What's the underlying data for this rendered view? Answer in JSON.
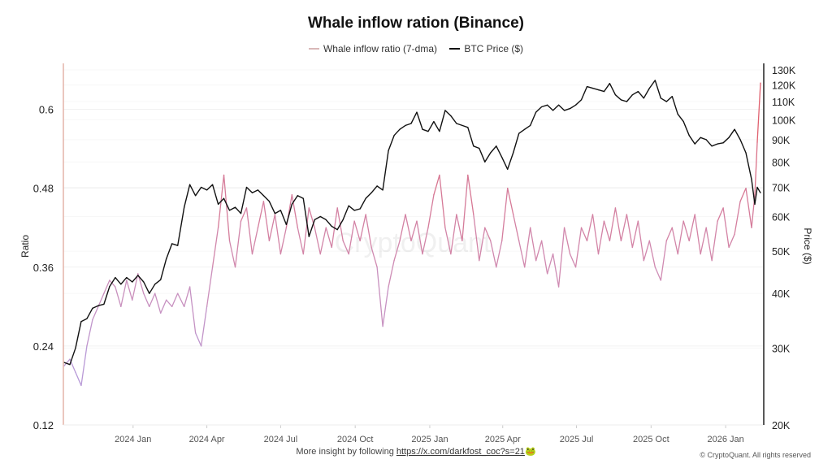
{
  "chart_data": {
    "type": "line",
    "title": "Whale inflow ration (Binance)",
    "legend": {
      "placement": "top-center",
      "entries": [
        "Whale inflow ratio (7-dma)",
        "BTC Price ($)"
      ]
    },
    "y_left": {
      "label": "Ratio",
      "ticks": [
        "0.12",
        "0.24",
        "0.36",
        "0.48",
        "0.6"
      ],
      "tick_values": [
        0.12,
        0.24,
        0.36,
        0.48,
        0.6
      ],
      "range": [
        0.12,
        0.66
      ]
    },
    "y_right": {
      "label": "Price ($)",
      "scale": "log",
      "ticks": [
        "20K",
        "30K",
        "40K",
        "50K",
        "60K",
        "70K",
        "80K",
        "90K",
        "100K",
        "110K",
        "120K",
        "130K"
      ],
      "tick_values": [
        20000,
        30000,
        40000,
        50000,
        60000,
        70000,
        80000,
        90000,
        100000,
        110000,
        120000,
        130000
      ],
      "range": [
        20000,
        130000
      ]
    },
    "x": {
      "ticks": [
        "2024 Jan",
        "2024 Apr",
        "2024 Jul",
        "2024 Oct",
        "2025 Jan",
        "2025 Apr",
        "2025 Jul",
        "2025 Oct",
        "2026 Jan"
      ],
      "tick_dates": [
        "2024-01-01",
        "2024-04-01",
        "2024-07-01",
        "2024-10-01",
        "2025-01-01",
        "2025-04-01",
        "2025-07-01",
        "2025-10-01",
        "2026-01-01"
      ],
      "range": [
        "2023-10-07",
        "2026-02-16"
      ]
    },
    "grid": true,
    "colors": {
      "ratio_low": "#b79ad8",
      "ratio_mid": "#cf8cb4",
      "ratio_high": "#e0606e",
      "price": "#111111"
    },
    "dates": [
      "2023-10-08",
      "2023-10-15",
      "2023-10-22",
      "2023-10-29",
      "2023-11-05",
      "2023-11-12",
      "2023-11-19",
      "2023-11-26",
      "2023-12-03",
      "2023-12-10",
      "2023-12-17",
      "2023-12-24",
      "2023-12-31",
      "2024-01-07",
      "2024-01-14",
      "2024-01-21",
      "2024-01-28",
      "2024-02-04",
      "2024-02-11",
      "2024-02-18",
      "2024-02-25",
      "2024-03-04",
      "2024-03-11",
      "2024-03-18",
      "2024-03-25",
      "2024-04-01",
      "2024-04-08",
      "2024-04-15",
      "2024-04-22",
      "2024-04-29",
      "2024-05-06",
      "2024-05-13",
      "2024-05-20",
      "2024-05-27",
      "2024-06-03",
      "2024-06-10",
      "2024-06-17",
      "2024-06-24",
      "2024-07-01",
      "2024-07-08",
      "2024-07-15",
      "2024-07-22",
      "2024-07-29",
      "2024-08-05",
      "2024-08-12",
      "2024-08-19",
      "2024-08-26",
      "2024-09-02",
      "2024-09-09",
      "2024-09-16",
      "2024-09-23",
      "2024-09-30",
      "2024-10-07",
      "2024-10-14",
      "2024-10-21",
      "2024-10-28",
      "2024-11-04",
      "2024-11-11",
      "2024-11-18",
      "2024-11-25",
      "2024-12-02",
      "2024-12-09",
      "2024-12-16",
      "2024-12-23",
      "2024-12-30",
      "2025-01-06",
      "2025-01-13",
      "2025-01-20",
      "2025-01-27",
      "2025-02-03",
      "2025-02-10",
      "2025-02-17",
      "2025-02-24",
      "2025-03-03",
      "2025-03-10",
      "2025-03-17",
      "2025-03-24",
      "2025-03-31",
      "2025-04-07",
      "2025-04-14",
      "2025-04-21",
      "2025-04-28",
      "2025-05-05",
      "2025-05-12",
      "2025-05-19",
      "2025-05-26",
      "2025-06-02",
      "2025-06-09",
      "2025-06-16",
      "2025-06-23",
      "2025-06-30",
      "2025-07-07",
      "2025-07-14",
      "2025-07-21",
      "2025-07-28",
      "2025-08-04",
      "2025-08-11",
      "2025-08-18",
      "2025-08-25",
      "2025-09-01",
      "2025-09-08",
      "2025-09-15",
      "2025-09-22",
      "2025-09-29",
      "2025-10-06",
      "2025-10-13",
      "2025-10-20",
      "2025-10-27",
      "2025-11-03",
      "2025-11-10",
      "2025-11-17",
      "2025-11-24",
      "2025-12-01",
      "2025-12-08",
      "2025-12-15",
      "2025-12-22",
      "2025-12-29",
      "2026-01-05",
      "2026-01-12",
      "2026-01-19",
      "2026-01-26",
      "2026-02-02",
      "2026-02-06",
      "2026-02-09",
      "2026-02-13"
    ],
    "series": [
      {
        "name": "Whale inflow ratio (7-dma)",
        "axis": "left",
        "values": [
          0.21,
          0.22,
          0.2,
          0.18,
          0.24,
          0.28,
          0.3,
          0.32,
          0.34,
          0.33,
          0.3,
          0.34,
          0.31,
          0.35,
          0.32,
          0.3,
          0.32,
          0.29,
          0.31,
          0.3,
          0.32,
          0.3,
          0.33,
          0.26,
          0.24,
          0.3,
          0.36,
          0.42,
          0.5,
          0.4,
          0.36,
          0.43,
          0.45,
          0.38,
          0.42,
          0.46,
          0.4,
          0.44,
          0.38,
          0.42,
          0.47,
          0.42,
          0.38,
          0.45,
          0.42,
          0.38,
          0.42,
          0.39,
          0.45,
          0.4,
          0.38,
          0.43,
          0.4,
          0.44,
          0.39,
          0.36,
          0.27,
          0.33,
          0.37,
          0.4,
          0.44,
          0.4,
          0.43,
          0.38,
          0.42,
          0.47,
          0.5,
          0.42,
          0.38,
          0.44,
          0.4,
          0.5,
          0.44,
          0.37,
          0.42,
          0.4,
          0.36,
          0.4,
          0.48,
          0.44,
          0.4,
          0.36,
          0.42,
          0.37,
          0.4,
          0.35,
          0.38,
          0.33,
          0.42,
          0.38,
          0.36,
          0.42,
          0.4,
          0.44,
          0.38,
          0.43,
          0.4,
          0.45,
          0.4,
          0.44,
          0.39,
          0.43,
          0.37,
          0.4,
          0.36,
          0.34,
          0.4,
          0.42,
          0.38,
          0.43,
          0.4,
          0.44,
          0.38,
          0.42,
          0.37,
          0.43,
          0.45,
          0.39,
          0.41,
          0.46,
          0.48,
          0.42,
          0.47,
          0.55,
          0.64
        ]
      },
      {
        "name": "BTC Price ($)",
        "axis": "right",
        "values": [
          27800,
          27500,
          30000,
          34500,
          35000,
          37000,
          37500,
          37800,
          41500,
          43500,
          42000,
          43500,
          42500,
          44000,
          42500,
          40000,
          42000,
          43000,
          48000,
          52000,
          51500,
          63000,
          71000,
          67000,
          70000,
          69000,
          71000,
          64000,
          66000,
          62000,
          63000,
          61000,
          70000,
          68000,
          69000,
          67000,
          65000,
          61000,
          62000,
          57500,
          64000,
          67000,
          66000,
          54000,
          59000,
          60000,
          59000,
          57000,
          56000,
          59000,
          63500,
          62000,
          62500,
          66000,
          68000,
          70500,
          69000,
          85000,
          92000,
          95000,
          97000,
          98000,
          104000,
          95000,
          94000,
          99000,
          94000,
          105000,
          102000,
          98000,
          97000,
          96000,
          87000,
          86000,
          80000,
          84000,
          87000,
          82000,
          77000,
          84000,
          93000,
          95000,
          97000,
          104000,
          107000,
          108000,
          105000,
          108000,
          105000,
          106000,
          108000,
          111000,
          119000,
          118000,
          117000,
          116000,
          121000,
          114000,
          111000,
          110000,
          114000,
          116000,
          112000,
          118000,
          123000,
          112000,
          110000,
          113000,
          103000,
          99000,
          92000,
          88000,
          91000,
          90000,
          87000,
          88000,
          88500,
          91000,
          95000,
          90000,
          84000,
          73000,
          64000,
          70000,
          68000
        ]
      }
    ]
  },
  "watermark": "CryptoQuant",
  "footer": {
    "text": "More insight by following ",
    "link": "https://x.com/darkfost_coc?s=21",
    "emoji": "🐸",
    "copyright": "© CryptoQuant. All rights reserved"
  }
}
